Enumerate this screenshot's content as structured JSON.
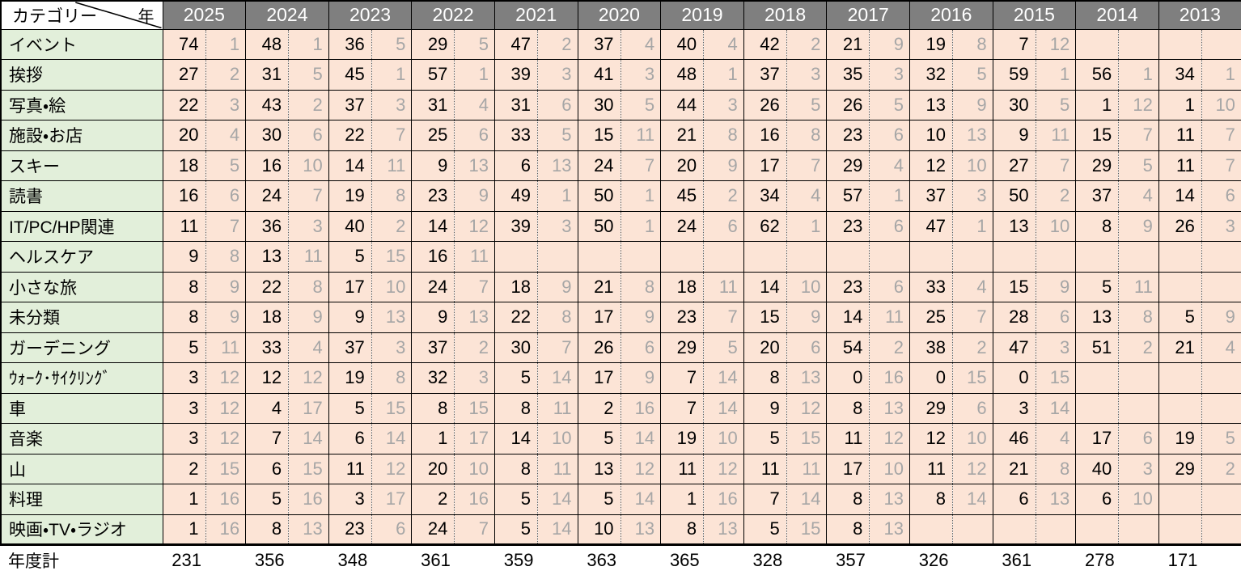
{
  "colors": {
    "header_bg": "#7f7f7f",
    "header_text": "#ffffff",
    "category_bg": "#e2efda",
    "data_bg": "#fce4d6",
    "rank_text": "#a6a6a6",
    "count_text": "#000000",
    "border": "#000000"
  },
  "chart_data": {
    "type": "table",
    "title": "",
    "corner": {
      "row_header_label": "カテゴリー",
      "col_header_label": "年"
    },
    "years": [
      "2025",
      "2024",
      "2023",
      "2022",
      "2021",
      "2020",
      "2019",
      "2018",
      "2017",
      "2016",
      "2015",
      "2014",
      "2013"
    ],
    "cell_format": "[count, rank] per year; null = empty cell",
    "rows": [
      {
        "category": "イベント",
        "cells": [
          [
            74,
            1
          ],
          [
            48,
            1
          ],
          [
            36,
            5
          ],
          [
            29,
            5
          ],
          [
            47,
            2
          ],
          [
            37,
            4
          ],
          [
            40,
            4
          ],
          [
            42,
            2
          ],
          [
            21,
            9
          ],
          [
            19,
            8
          ],
          [
            7,
            12
          ],
          null,
          null
        ]
      },
      {
        "category": "挨拶",
        "cells": [
          [
            27,
            2
          ],
          [
            31,
            5
          ],
          [
            45,
            1
          ],
          [
            57,
            1
          ],
          [
            39,
            3
          ],
          [
            41,
            3
          ],
          [
            48,
            1
          ],
          [
            37,
            3
          ],
          [
            35,
            3
          ],
          [
            32,
            5
          ],
          [
            59,
            1
          ],
          [
            56,
            1
          ],
          [
            34,
            1
          ]
        ]
      },
      {
        "category": "写真・絵",
        "cells": [
          [
            22,
            3
          ],
          [
            43,
            2
          ],
          [
            37,
            3
          ],
          [
            31,
            4
          ],
          [
            31,
            6
          ],
          [
            30,
            5
          ],
          [
            44,
            3
          ],
          [
            26,
            5
          ],
          [
            26,
            5
          ],
          [
            13,
            9
          ],
          [
            30,
            5
          ],
          [
            1,
            12
          ],
          [
            1,
            10
          ]
        ]
      },
      {
        "category": "施設・お店",
        "cells": [
          [
            20,
            4
          ],
          [
            30,
            6
          ],
          [
            22,
            7
          ],
          [
            25,
            6
          ],
          [
            33,
            5
          ],
          [
            15,
            11
          ],
          [
            21,
            8
          ],
          [
            16,
            8
          ],
          [
            23,
            6
          ],
          [
            10,
            13
          ],
          [
            9,
            11
          ],
          [
            15,
            7
          ],
          [
            11,
            7
          ]
        ]
      },
      {
        "category": "スキー",
        "cells": [
          [
            18,
            5
          ],
          [
            16,
            10
          ],
          [
            14,
            11
          ],
          [
            9,
            13
          ],
          [
            6,
            13
          ],
          [
            24,
            7
          ],
          [
            20,
            9
          ],
          [
            17,
            7
          ],
          [
            29,
            4
          ],
          [
            12,
            10
          ],
          [
            27,
            7
          ],
          [
            29,
            5
          ],
          [
            11,
            7
          ]
        ]
      },
      {
        "category": "読書",
        "cells": [
          [
            16,
            6
          ],
          [
            24,
            7
          ],
          [
            19,
            8
          ],
          [
            23,
            9
          ],
          [
            49,
            1
          ],
          [
            50,
            1
          ],
          [
            45,
            2
          ],
          [
            34,
            4
          ],
          [
            57,
            1
          ],
          [
            37,
            3
          ],
          [
            50,
            2
          ],
          [
            37,
            4
          ],
          [
            14,
            6
          ]
        ]
      },
      {
        "category": "IT/PC/HP関連",
        "cells": [
          [
            11,
            7
          ],
          [
            36,
            3
          ],
          [
            40,
            2
          ],
          [
            14,
            12
          ],
          [
            39,
            3
          ],
          [
            50,
            1
          ],
          [
            24,
            6
          ],
          [
            62,
            1
          ],
          [
            23,
            6
          ],
          [
            47,
            1
          ],
          [
            13,
            10
          ],
          [
            8,
            9
          ],
          [
            26,
            3
          ]
        ]
      },
      {
        "category": "ヘルスケア",
        "cells": [
          [
            9,
            8
          ],
          [
            13,
            11
          ],
          [
            5,
            15
          ],
          [
            16,
            11
          ],
          null,
          null,
          null,
          null,
          null,
          null,
          null,
          null,
          null
        ]
      },
      {
        "category": "小さな旅",
        "cells": [
          [
            8,
            9
          ],
          [
            22,
            8
          ],
          [
            17,
            10
          ],
          [
            24,
            7
          ],
          [
            18,
            9
          ],
          [
            21,
            8
          ],
          [
            18,
            11
          ],
          [
            14,
            10
          ],
          [
            23,
            6
          ],
          [
            33,
            4
          ],
          [
            15,
            9
          ],
          [
            5,
            11
          ],
          null
        ]
      },
      {
        "category": "未分類",
        "cells": [
          [
            8,
            9
          ],
          [
            18,
            9
          ],
          [
            9,
            13
          ],
          [
            9,
            13
          ],
          [
            22,
            8
          ],
          [
            17,
            9
          ],
          [
            23,
            7
          ],
          [
            15,
            9
          ],
          [
            14,
            11
          ],
          [
            25,
            7
          ],
          [
            28,
            6
          ],
          [
            13,
            8
          ],
          [
            5,
            9
          ]
        ]
      },
      {
        "category": "ガーデニング",
        "cells": [
          [
            5,
            11
          ],
          [
            33,
            4
          ],
          [
            37,
            3
          ],
          [
            37,
            2
          ],
          [
            30,
            7
          ],
          [
            26,
            6
          ],
          [
            29,
            5
          ],
          [
            20,
            6
          ],
          [
            54,
            2
          ],
          [
            38,
            2
          ],
          [
            47,
            3
          ],
          [
            51,
            2
          ],
          [
            21,
            4
          ]
        ]
      },
      {
        "category": "ｳｫｰｸ･ｻｲｸﾘﾝｸﾞ",
        "cells": [
          [
            3,
            12
          ],
          [
            12,
            12
          ],
          [
            19,
            8
          ],
          [
            32,
            3
          ],
          [
            5,
            14
          ],
          [
            17,
            9
          ],
          [
            7,
            14
          ],
          [
            8,
            13
          ],
          [
            0,
            16
          ],
          [
            0,
            15
          ],
          [
            0,
            15
          ],
          null,
          null
        ]
      },
      {
        "category": "車",
        "cells": [
          [
            3,
            12
          ],
          [
            4,
            17
          ],
          [
            5,
            15
          ],
          [
            8,
            15
          ],
          [
            8,
            11
          ],
          [
            2,
            16
          ],
          [
            7,
            14
          ],
          [
            9,
            12
          ],
          [
            8,
            13
          ],
          [
            29,
            6
          ],
          [
            3,
            14
          ],
          null,
          null
        ]
      },
      {
        "category": "音楽",
        "cells": [
          [
            3,
            12
          ],
          [
            7,
            14
          ],
          [
            6,
            14
          ],
          [
            1,
            17
          ],
          [
            14,
            10
          ],
          [
            5,
            14
          ],
          [
            19,
            10
          ],
          [
            5,
            15
          ],
          [
            11,
            12
          ],
          [
            12,
            10
          ],
          [
            46,
            4
          ],
          [
            17,
            6
          ],
          [
            19,
            5
          ]
        ]
      },
      {
        "category": "山",
        "cells": [
          [
            2,
            15
          ],
          [
            6,
            15
          ],
          [
            11,
            12
          ],
          [
            20,
            10
          ],
          [
            8,
            11
          ],
          [
            13,
            12
          ],
          [
            11,
            12
          ],
          [
            11,
            11
          ],
          [
            17,
            10
          ],
          [
            11,
            12
          ],
          [
            21,
            8
          ],
          [
            40,
            3
          ],
          [
            29,
            2
          ]
        ]
      },
      {
        "category": "料理",
        "cells": [
          [
            1,
            16
          ],
          [
            5,
            16
          ],
          [
            3,
            17
          ],
          [
            2,
            16
          ],
          [
            5,
            14
          ],
          [
            5,
            14
          ],
          [
            1,
            16
          ],
          [
            7,
            14
          ],
          [
            8,
            13
          ],
          [
            8,
            14
          ],
          [
            6,
            13
          ],
          [
            6,
            10
          ],
          null
        ]
      },
      {
        "category": "映画・TV・ラジオ",
        "cells": [
          [
            1,
            16
          ],
          [
            8,
            13
          ],
          [
            23,
            6
          ],
          [
            24,
            7
          ],
          [
            5,
            14
          ],
          [
            10,
            13
          ],
          [
            8,
            13
          ],
          [
            5,
            15
          ],
          [
            8,
            13
          ],
          null,
          null,
          null,
          null
        ]
      }
    ],
    "total_row": {
      "label": "年度計",
      "values": [
        231,
        356,
        348,
        361,
        359,
        363,
        365,
        328,
        357,
        326,
        361,
        278,
        171
      ]
    }
  }
}
